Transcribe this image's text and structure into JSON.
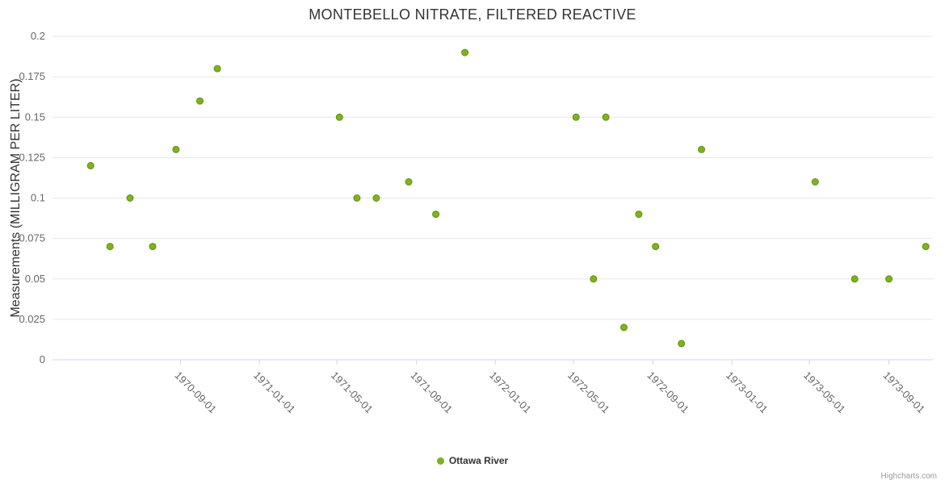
{
  "credits": "Highcharts.com",
  "chart_data": {
    "type": "scatter",
    "title": "MONTEBELLO NITRATE, FILTERED REACTIVE",
    "xlabel": "",
    "ylabel": "Measurements (MILLIGRAM PER LITER)",
    "ylim": [
      0,
      0.2
    ],
    "y_ticks": [
      0,
      0.025,
      0.05,
      0.075,
      0.1,
      0.125,
      0.15,
      0.175,
      0.2
    ],
    "y_tick_labels": [
      "0",
      "0.025",
      "0.05",
      "0.075",
      "0.1",
      "0.125",
      "0.15",
      "0.175",
      "0.2"
    ],
    "x_ticks": [
      "1970-09-01",
      "1971-01-01",
      "1971-05-01",
      "1971-09-01",
      "1972-01-01",
      "1972-05-01",
      "1972-09-01",
      "1973-01-01",
      "1973-05-01",
      "1973-09-01"
    ],
    "x_domain": [
      "1970-02-15",
      "1973-11-08"
    ],
    "grid": "horizontal-only",
    "legend_position": "bottom-center",
    "colors": {
      "marker_fill": "#7db31e",
      "marker_stroke": "#61900f",
      "grid_line": "#e6e6e6",
      "axis_line": "#ccd6eb",
      "tick_label": "#666666",
      "title_text": "#333333"
    },
    "series": [
      {
        "name": "Ottawa River",
        "color": "#7db31e",
        "marker": "circle",
        "points": [
          {
            "x": "1970-04-15",
            "y": 0.12
          },
          {
            "x": "1970-05-15",
            "y": 0.07
          },
          {
            "x": "1970-06-15",
            "y": 0.1
          },
          {
            "x": "1970-07-20",
            "y": 0.07
          },
          {
            "x": "1970-08-25",
            "y": 0.13
          },
          {
            "x": "1970-10-01",
            "y": 0.16
          },
          {
            "x": "1970-10-28",
            "y": 0.18
          },
          {
            "x": "1971-05-05",
            "y": 0.15
          },
          {
            "x": "1971-06-01",
            "y": 0.1
          },
          {
            "x": "1971-07-01",
            "y": 0.1
          },
          {
            "x": "1971-08-20",
            "y": 0.11
          },
          {
            "x": "1971-10-01",
            "y": 0.09
          },
          {
            "x": "1971-11-15",
            "y": 0.19
          },
          {
            "x": "1972-05-05",
            "y": 0.15
          },
          {
            "x": "1972-06-01",
            "y": 0.05
          },
          {
            "x": "1972-06-20",
            "y": 0.15
          },
          {
            "x": "1972-07-18",
            "y": 0.02
          },
          {
            "x": "1972-08-10",
            "y": 0.09
          },
          {
            "x": "1972-09-05",
            "y": 0.07
          },
          {
            "x": "1972-10-15",
            "y": 0.01
          },
          {
            "x": "1972-11-15",
            "y": 0.13
          },
          {
            "x": "1973-05-10",
            "y": 0.11
          },
          {
            "x": "1973-07-10",
            "y": 0.05
          },
          {
            "x": "1973-09-01",
            "y": 0.05
          },
          {
            "x": "1973-10-28",
            "y": 0.07
          }
        ]
      }
    ]
  }
}
